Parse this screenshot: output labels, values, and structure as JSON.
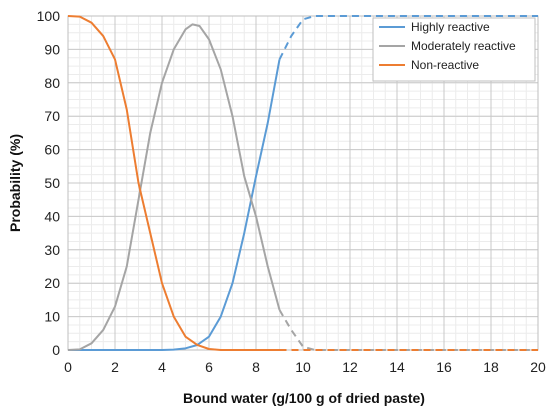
{
  "chart_data": {
    "type": "line",
    "title": "",
    "xlabel": "Bound water (g/100 g of dried paste)",
    "ylabel": "Probability (%)",
    "xlim": [
      0,
      20
    ],
    "ylim": [
      0,
      100
    ],
    "x_ticks": [
      "0",
      "2",
      "4",
      "6",
      "8",
      "10",
      "12",
      "14",
      "16",
      "18",
      "20"
    ],
    "y_ticks": [
      "0",
      "10",
      "20",
      "30",
      "40",
      "50",
      "60",
      "70",
      "80",
      "90",
      "100"
    ],
    "grid": true,
    "minor_grid": true,
    "legend_position": "top-right",
    "series": [
      {
        "name": "Highly reactive",
        "color": "#5b9bd5",
        "solid": [
          [
            0,
            0
          ],
          [
            1,
            0
          ],
          [
            2,
            0
          ],
          [
            3,
            0
          ],
          [
            4,
            0
          ],
          [
            4.5,
            0.1
          ],
          [
            5,
            0.5
          ],
          [
            5.5,
            1.5
          ],
          [
            6,
            4
          ],
          [
            6.5,
            10
          ],
          [
            7,
            20
          ],
          [
            7.5,
            35
          ],
          [
            8,
            52
          ],
          [
            8.5,
            68
          ],
          [
            9,
            87
          ]
        ],
        "dashed": [
          [
            9,
            87
          ],
          [
            9.5,
            94
          ],
          [
            10,
            99
          ],
          [
            10.5,
            100
          ],
          [
            12,
            100
          ],
          [
            14,
            100
          ],
          [
            16,
            100
          ],
          [
            18,
            100
          ],
          [
            20,
            100
          ]
        ]
      },
      {
        "name": "Moderately reactive",
        "color": "#a5a5a5",
        "solid": [
          [
            0,
            0
          ],
          [
            0.5,
            0.2
          ],
          [
            1,
            2
          ],
          [
            1.5,
            6
          ],
          [
            2,
            13
          ],
          [
            2.5,
            25
          ],
          [
            3,
            45
          ],
          [
            3.5,
            65
          ],
          [
            4,
            80
          ],
          [
            4.5,
            90
          ],
          [
            5,
            96
          ],
          [
            5.3,
            97.5
          ],
          [
            5.6,
            97
          ],
          [
            6,
            93
          ],
          [
            6.5,
            84
          ],
          [
            7,
            70
          ],
          [
            7.5,
            52
          ],
          [
            8,
            40
          ],
          [
            8.5,
            25
          ],
          [
            9,
            12
          ]
        ],
        "dashed": [
          [
            9,
            12
          ],
          [
            9.5,
            6
          ],
          [
            10,
            1
          ],
          [
            10.5,
            0
          ],
          [
            12,
            0
          ],
          [
            14,
            0
          ],
          [
            16,
            0
          ],
          [
            18,
            0
          ],
          [
            20,
            0
          ]
        ]
      },
      {
        "name": "Non-reactive",
        "color": "#ed7d31",
        "solid": [
          [
            0,
            100
          ],
          [
            0.5,
            99.8
          ],
          [
            1,
            98
          ],
          [
            1.5,
            94
          ],
          [
            2,
            87
          ],
          [
            2.5,
            72
          ],
          [
            3,
            50
          ],
          [
            3.5,
            35
          ],
          [
            4,
            20
          ],
          [
            4.5,
            10
          ],
          [
            5,
            4
          ],
          [
            5.5,
            1.5
          ],
          [
            6,
            0.3
          ],
          [
            6.5,
            0
          ],
          [
            7,
            0
          ],
          [
            8,
            0
          ],
          [
            9,
            0
          ]
        ],
        "dashed": [
          [
            9,
            0
          ],
          [
            10,
            0
          ],
          [
            12,
            0
          ],
          [
            14,
            0
          ],
          [
            16,
            0
          ],
          [
            18,
            0
          ],
          [
            20,
            0
          ]
        ]
      }
    ]
  }
}
